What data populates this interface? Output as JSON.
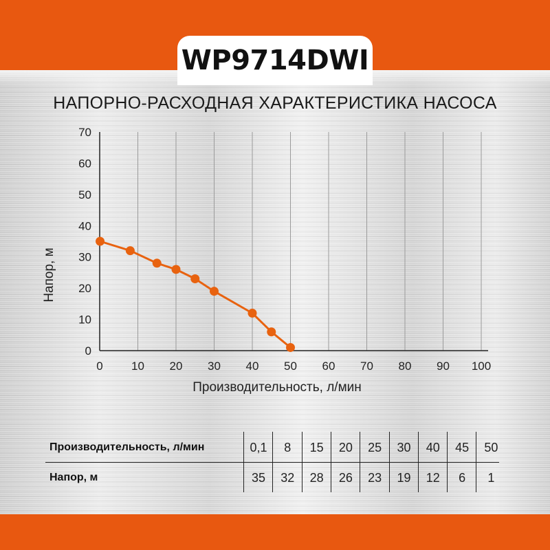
{
  "model": "WP9714DWI",
  "chart_title": "НАПОРНО-РАСХОДНАЯ ХАРАКТЕРИСТИКА НАСОСА",
  "colors": {
    "brand_orange": "#e85810",
    "curve": "#e8620f",
    "axis": "#222222",
    "grid": "#9a9a9a"
  },
  "chart_data": {
    "type": "line",
    "title": "НАПОРНО-РАСХОДНАЯ ХАРАКТЕРИСТИКА НАСОСА",
    "xlabel": "Производительность, л/мин",
    "ylabel": "Напор, м",
    "xlim": [
      0,
      100
    ],
    "ylim": [
      0,
      70
    ],
    "xticks": [
      "0",
      "10",
      "20",
      "30",
      "40",
      "50",
      "60",
      "70",
      "80",
      "90",
      "100"
    ],
    "yticks": [
      "0",
      "10",
      "20",
      "30",
      "40",
      "50",
      "60",
      "70"
    ],
    "grid": "vertical",
    "x": [
      0.1,
      8,
      15,
      20,
      25,
      30,
      40,
      45,
      50
    ],
    "y": [
      35,
      32,
      28,
      26,
      23,
      19,
      12,
      6,
      1
    ]
  },
  "table": {
    "row1_label": "Производительность, л/мин",
    "row2_label": "Напор, м",
    "flow": [
      "0,1",
      "8",
      "15",
      "20",
      "25",
      "30",
      "40",
      "45",
      "50"
    ],
    "head": [
      "35",
      "32",
      "28",
      "26",
      "23",
      "19",
      "12",
      "6",
      "1"
    ]
  }
}
